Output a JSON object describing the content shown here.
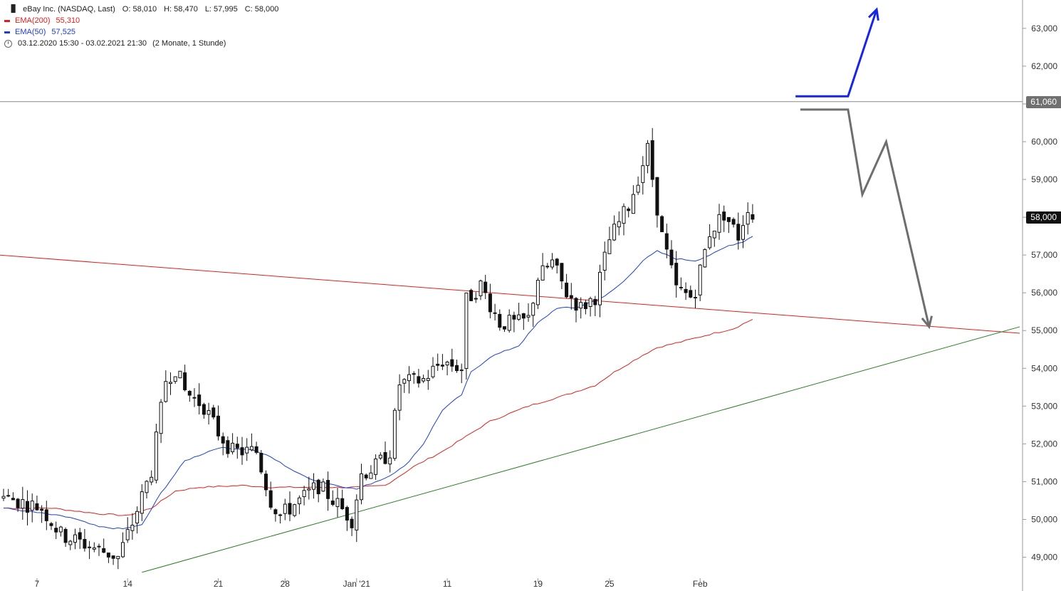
{
  "header": {
    "instrument": "eBay Inc. (NASDAQ, Last)",
    "ohlc": {
      "open": "O: 58,010",
      "high": "H: 58,470",
      "low": "L: 57,995",
      "close": "C: 58,000"
    },
    "range": "03.12.2020 15:30 - 03.02.2021 21:30",
    "range_note": "(2 Monate, 1 Stunde)"
  },
  "legend": [
    {
      "name": "EMA(200)",
      "value": "55,310",
      "color": "#e0201b"
    },
    {
      "name": "EMA(50)",
      "value": "57,525",
      "color": "#1e3fd6"
    }
  ],
  "price_tags": {
    "level": {
      "label": "61,060",
      "value": 61.06,
      "color": "#707070"
    },
    "last": {
      "label": "58,000",
      "value": 58.0,
      "color": "#111111"
    }
  },
  "colors": {
    "candle": "#111111",
    "grid_line": "#888888",
    "support": "#2e7d25",
    "resistance": "#e0201b",
    "bull_arrow": "#1726e6",
    "bear_arrow": "#6e6e6e"
  },
  "chart_data": {
    "type": "candlestick",
    "ylim": [
      48.6,
      63.6
    ],
    "y_ticks": [
      {
        "value": 63.0,
        "label": "63,000"
      },
      {
        "value": 62.0,
        "label": "62,000"
      },
      {
        "value": 61.0,
        "label": "61,000"
      },
      {
        "value": 60.0,
        "label": "60,000"
      },
      {
        "value": 59.0,
        "label": "59,000"
      },
      {
        "value": 58.0,
        "label": "58,000"
      },
      {
        "value": 57.0,
        "label": "57,000"
      },
      {
        "value": 56.0,
        "label": "56,000"
      },
      {
        "value": 55.0,
        "label": "55,000"
      },
      {
        "value": 54.0,
        "label": "54,000"
      },
      {
        "value": 53.0,
        "label": "53,000"
      },
      {
        "value": 52.0,
        "label": "52,000"
      },
      {
        "value": 51.0,
        "label": "51,000"
      },
      {
        "value": 50.0,
        "label": "50,000"
      },
      {
        "value": 49.0,
        "label": "49,000"
      }
    ],
    "x_ticks": [
      {
        "label": "7",
        "bar": 7
      },
      {
        "label": "14",
        "bar": 26
      },
      {
        "label": "21",
        "bar": 45
      },
      {
        "label": "28",
        "bar": 59
      },
      {
        "label": "Jan '21",
        "bar": 74
      },
      {
        "label": "11",
        "bar": 93
      },
      {
        "label": "19",
        "bar": 112
      },
      {
        "label": "25",
        "bar": 127
      },
      {
        "label": "Feb",
        "bar": 146
      }
    ],
    "close_keypoints": [
      [
        0,
        50.6
      ],
      [
        8,
        50.3
      ],
      [
        12,
        49.6
      ],
      [
        18,
        49.3
      ],
      [
        24,
        49.0
      ],
      [
        27,
        49.9
      ],
      [
        31,
        51.3
      ],
      [
        34,
        53.7
      ],
      [
        36,
        54.0
      ],
      [
        38,
        53.4
      ],
      [
        42,
        53.0
      ],
      [
        45,
        52.3
      ],
      [
        48,
        51.8
      ],
      [
        53,
        51.8
      ],
      [
        56,
        50.5
      ],
      [
        58,
        50.1
      ],
      [
        63,
        50.6
      ],
      [
        66,
        50.9
      ],
      [
        70,
        50.4
      ],
      [
        73,
        50.0
      ],
      [
        75,
        51.2
      ],
      [
        78,
        51.4
      ],
      [
        81,
        51.8
      ],
      [
        83,
        53.6
      ],
      [
        88,
        53.7
      ],
      [
        92,
        54.2
      ],
      [
        96,
        54.0
      ],
      [
        97,
        55.8
      ],
      [
        100,
        56.2
      ],
      [
        104,
        55.2
      ],
      [
        108,
        55.2
      ],
      [
        110,
        55.3
      ],
      [
        112,
        56.4
      ],
      [
        115,
        56.8
      ],
      [
        118,
        56.0
      ],
      [
        121,
        55.6
      ],
      [
        124,
        55.9
      ],
      [
        127,
        57.4
      ],
      [
        131,
        58.3
      ],
      [
        135,
        59.8
      ],
      [
        138,
        57.5
      ],
      [
        141,
        56.1
      ],
      [
        144,
        55.9
      ],
      [
        145,
        56.1
      ],
      [
        148,
        57.6
      ],
      [
        151,
        58.1
      ],
      [
        154,
        57.5
      ],
      [
        156,
        58.3
      ],
      [
        157,
        58.0
      ]
    ],
    "ema200_keypoints": [
      [
        0,
        50.3
      ],
      [
        10,
        50.3
      ],
      [
        20,
        50.15
      ],
      [
        26,
        50.1
      ],
      [
        31,
        50.3
      ],
      [
        36,
        50.75
      ],
      [
        41,
        50.85
      ],
      [
        50,
        50.9
      ],
      [
        56,
        50.85
      ],
      [
        66,
        50.85
      ],
      [
        74,
        50.85
      ],
      [
        80,
        50.9
      ],
      [
        86,
        51.4
      ],
      [
        92,
        51.8
      ],
      [
        97,
        52.2
      ],
      [
        102,
        52.6
      ],
      [
        110,
        53.0
      ],
      [
        118,
        53.3
      ],
      [
        124,
        53.55
      ],
      [
        128,
        53.9
      ],
      [
        134,
        54.35
      ],
      [
        137,
        54.55
      ],
      [
        142,
        54.7
      ],
      [
        148,
        54.9
      ],
      [
        153,
        55.05
      ],
      [
        157,
        55.3
      ]
    ],
    "ema50_keypoints": [
      [
        0,
        50.3
      ],
      [
        6,
        50.2
      ],
      [
        14,
        50.05
      ],
      [
        20,
        49.8
      ],
      [
        25,
        49.75
      ],
      [
        29,
        49.85
      ],
      [
        33,
        50.7
      ],
      [
        38,
        51.55
      ],
      [
        45,
        51.9
      ],
      [
        52,
        51.85
      ],
      [
        56,
        51.65
      ],
      [
        62,
        51.2
      ],
      [
        66,
        51.0
      ],
      [
        74,
        50.8
      ],
      [
        80,
        51.1
      ],
      [
        84,
        51.4
      ],
      [
        88,
        52.0
      ],
      [
        92,
        52.9
      ],
      [
        96,
        53.3
      ],
      [
        98,
        53.9
      ],
      [
        102,
        54.3
      ],
      [
        108,
        54.6
      ],
      [
        112,
        55.2
      ],
      [
        116,
        55.6
      ],
      [
        120,
        55.6
      ],
      [
        126,
        55.9
      ],
      [
        130,
        56.3
      ],
      [
        134,
        56.85
      ],
      [
        137,
        57.1
      ],
      [
        141,
        56.9
      ],
      [
        145,
        56.85
      ],
      [
        149,
        57.05
      ],
      [
        152,
        57.25
      ],
      [
        155,
        57.35
      ],
      [
        157,
        57.5
      ]
    ],
    "candle_count": 158,
    "reference_bar_x": 5,
    "reference_bar_spacing": 6.7,
    "trend_lines": [
      {
        "name": "resistance",
        "from": [
          -1,
          57.0
        ],
        "to": [
          213,
          54.93
        ]
      },
      {
        "name": "support",
        "from": [
          29,
          48.6
        ],
        "to": [
          213,
          55.1
        ]
      }
    ],
    "horizontal_level": 61.06,
    "bull_scenario": [
      [
        166,
        61.2
      ],
      [
        177,
        61.2
      ],
      [
        183,
        63.5
      ]
    ],
    "bear_scenario": [
      [
        167,
        60.85
      ],
      [
        177,
        60.85
      ],
      [
        180,
        58.6
      ],
      [
        185,
        60.0
      ],
      [
        194,
        55.1
      ]
    ]
  }
}
